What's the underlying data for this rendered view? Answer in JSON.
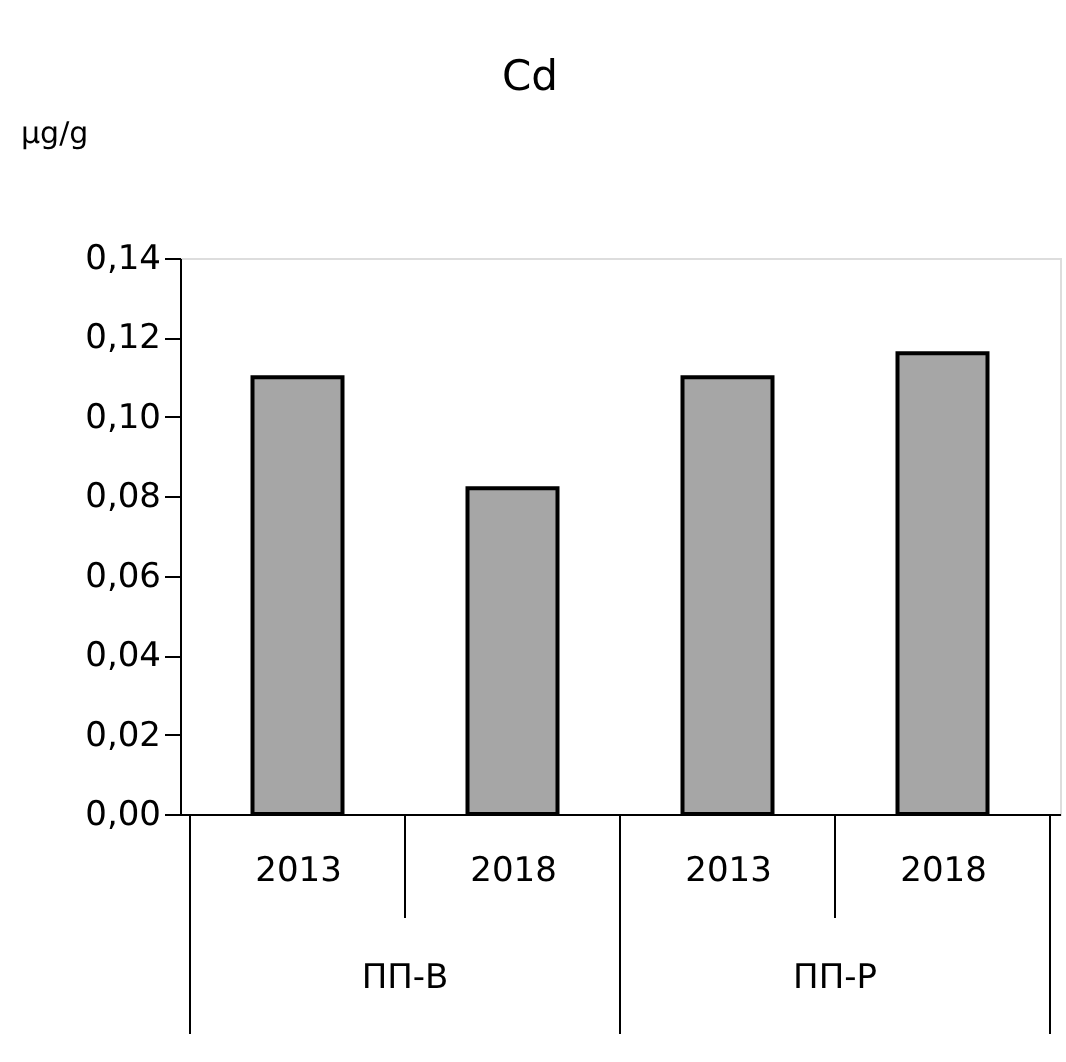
{
  "chart_data": {
    "type": "bar",
    "title": "Cd",
    "ylabel": "µg/g",
    "categories": [
      "2013",
      "2018",
      "2013",
      "2018"
    ],
    "values": [
      0.11,
      0.082,
      0.11,
      0.116
    ],
    "color": "#a6a6a6",
    "ylim": [
      0,
      0.14
    ],
    "yticks": [
      {
        "value": 0,
        "label": "0,00"
      },
      {
        "value": 0.02,
        "label": "0,02"
      },
      {
        "value": 0.04,
        "label": "0,04"
      },
      {
        "value": 0.06,
        "label": "0,06"
      },
      {
        "value": 0.08,
        "label": "0,08"
      },
      {
        "value": 0.1,
        "label": "0,10"
      },
      {
        "value": 0.12,
        "label": "0,12"
      },
      {
        "value": 0.14,
        "label": "0,14"
      }
    ],
    "annotations": [
      "ПП-В",
      "ПП-Р"
    ],
    "grid": false
  }
}
